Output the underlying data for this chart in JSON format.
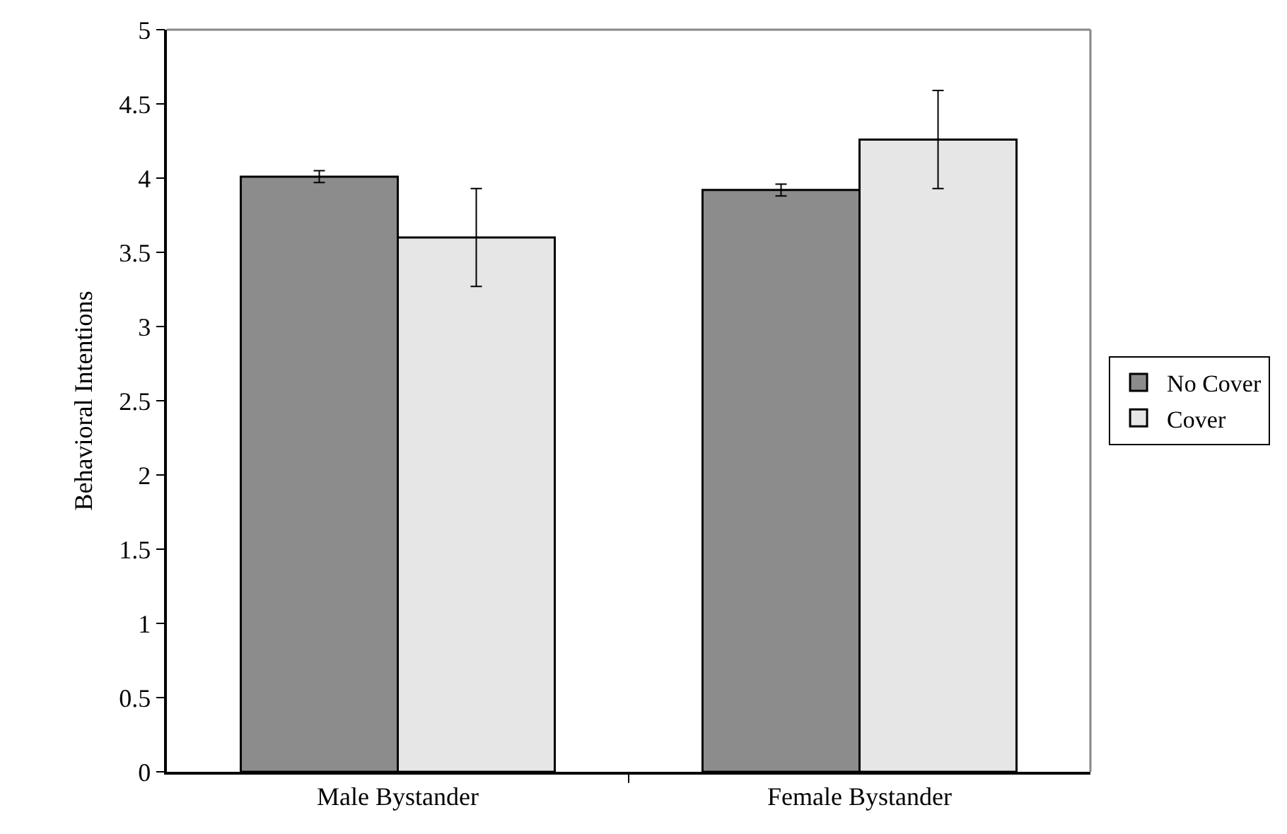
{
  "chart_data": {
    "type": "bar",
    "ylabel": "Behavioral Intentions",
    "categories": [
      "Male Bystander",
      "Female Bystander"
    ],
    "series": [
      {
        "name": "No Cover",
        "color": "#8c8c8c",
        "values": [
          4.01,
          3.92
        ],
        "errors": [
          0.04,
          0.04
        ]
      },
      {
        "name": "Cover",
        "color": "#e6e6e6",
        "values": [
          3.6,
          4.26
        ],
        "errors": [
          0.33,
          0.33
        ]
      }
    ],
    "ylim": [
      0,
      5
    ],
    "yticks": [
      0,
      0.5,
      1,
      1.5,
      2,
      2.5,
      3,
      3.5,
      4,
      4.5,
      5
    ],
    "grid": false,
    "legend": "right"
  }
}
